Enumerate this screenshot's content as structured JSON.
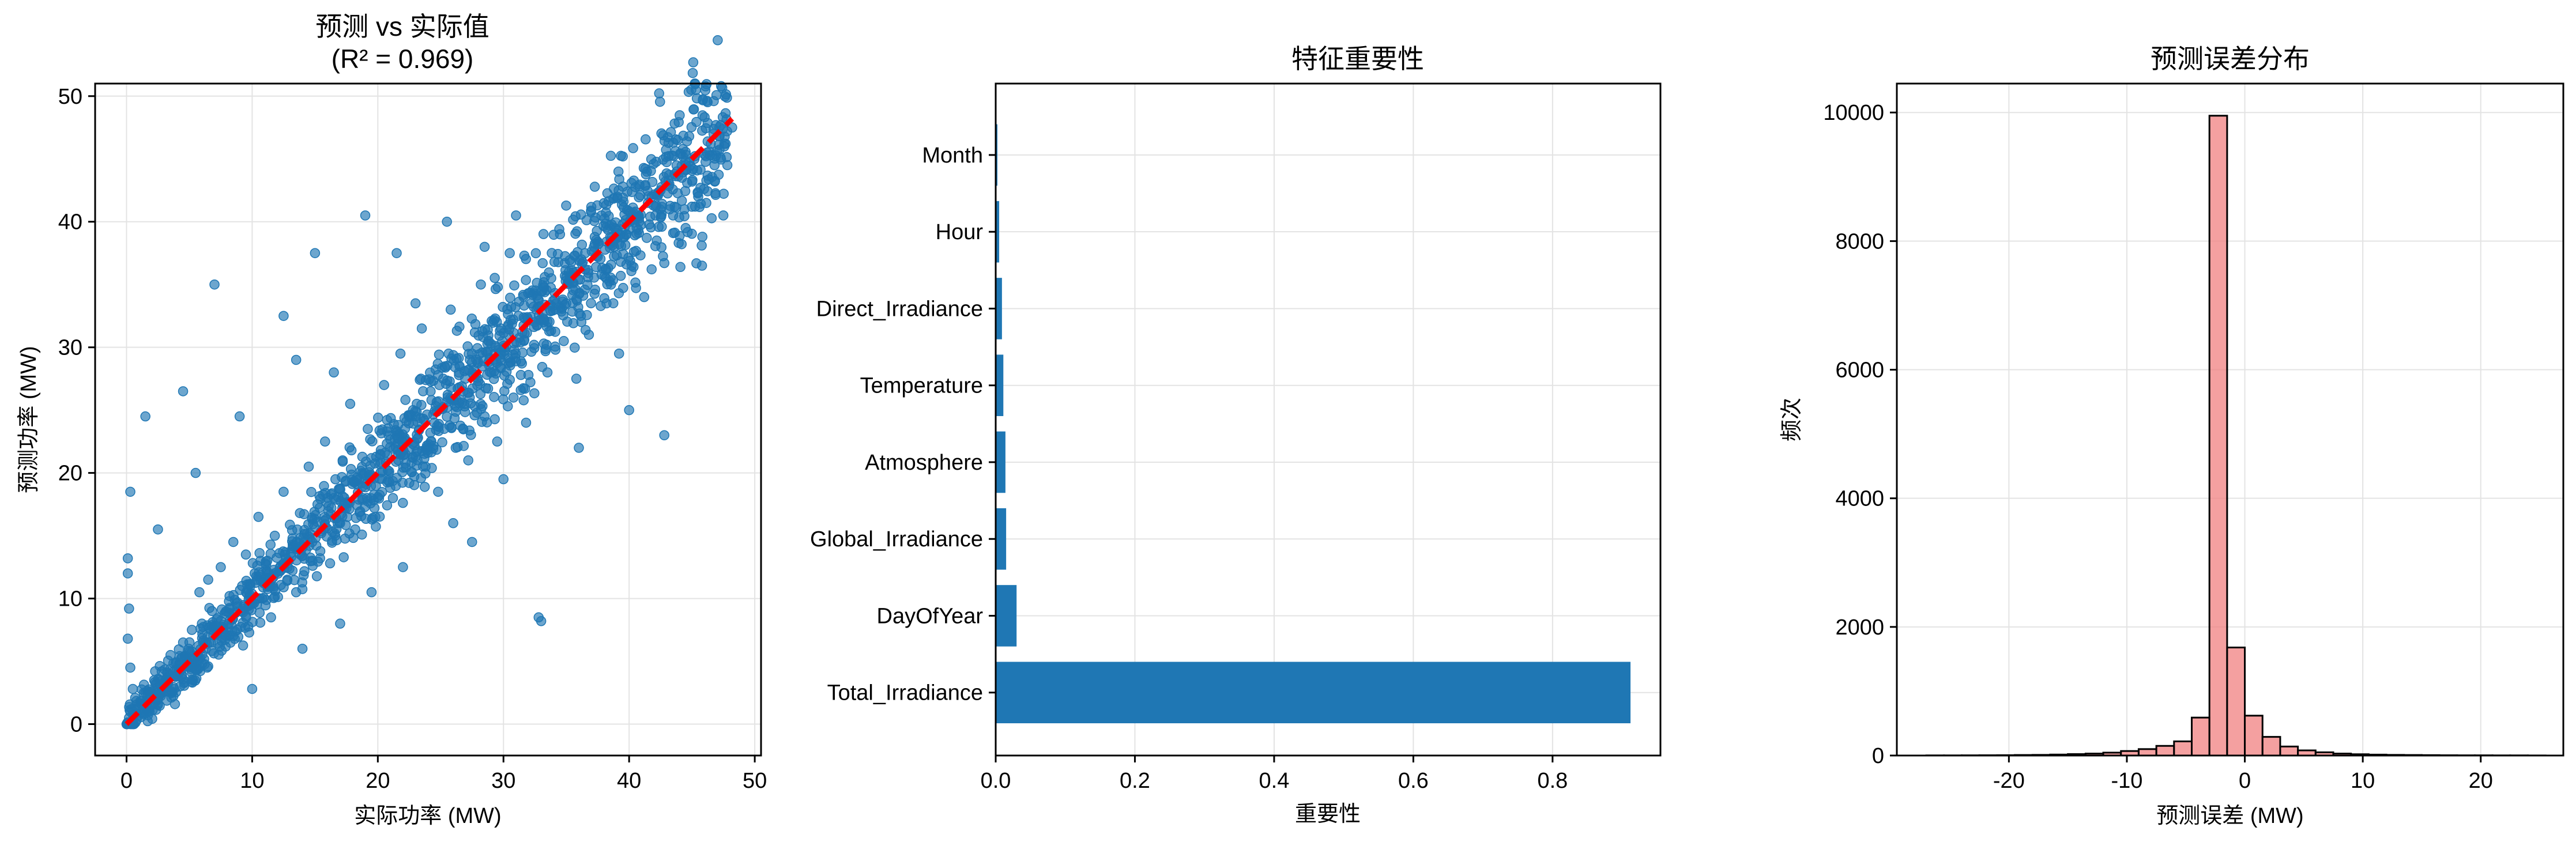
{
  "chart_data": [
    {
      "type": "scatter",
      "title": "预测 vs 实际值",
      "subtitle": "(R² = 0.969)",
      "xlabel": "实际功率 (MW)",
      "ylabel": "预测功率 (MW)",
      "xlim": [
        -2.5,
        50.5
      ],
      "ylim": [
        -2.5,
        51
      ],
      "xticks": [
        0,
        10,
        20,
        30,
        40,
        50
      ],
      "yticks": [
        0,
        10,
        20,
        30,
        40,
        50
      ],
      "grid": true,
      "point_color": "#1f77b4",
      "reference_line": {
        "x": [
          0,
          48.2
        ],
        "y": [
          0,
          48.2
        ],
        "color": "#ff0000",
        "style": "dashed"
      },
      "points": [
        [
          0.2,
          0.5
        ],
        [
          0.4,
          1.2
        ],
        [
          0.3,
          18.5
        ],
        [
          0.1,
          13.2
        ],
        [
          0.1,
          12.0
        ],
        [
          0.2,
          9.2
        ],
        [
          0.1,
          6.8
        ],
        [
          0.3,
          4.5
        ],
        [
          0.5,
          2.8
        ],
        [
          0.8,
          0.3
        ],
        [
          1.2,
          1.8
        ],
        [
          1.5,
          2.5
        ],
        [
          1.8,
          1.2
        ],
        [
          2.2,
          3.5
        ],
        [
          2.5,
          2.0
        ],
        [
          2.8,
          4.2
        ],
        [
          3.2,
          3.0
        ],
        [
          3.5,
          5.5
        ],
        [
          3.8,
          2.8
        ],
        [
          4.2,
          4.8
        ],
        [
          4.5,
          6.5
        ],
        [
          4.8,
          5.0
        ],
        [
          5.2,
          7.5
        ],
        [
          5.5,
          4.5
        ],
        [
          5.8,
          10.5
        ],
        [
          6.0,
          8.0
        ],
        [
          6.3,
          6.0
        ],
        [
          6.5,
          11.5
        ],
        [
          6.8,
          9.0
        ],
        [
          7.2,
          7.2
        ],
        [
          7.5,
          12.5
        ],
        [
          7.8,
          8.8
        ],
        [
          8.2,
          10.2
        ],
        [
          8.5,
          14.5
        ],
        [
          8.8,
          7.5
        ],
        [
          9.2,
          11.0
        ],
        [
          9.5,
          13.5
        ],
        [
          9.8,
          9.5
        ],
        [
          10.2,
          12.0
        ],
        [
          10.5,
          16.5
        ],
        [
          10.8,
          10.0
        ],
        [
          11.2,
          13.0
        ],
        [
          11.5,
          8.5
        ],
        [
          11.8,
          15.0
        ],
        [
          12.2,
          12.2
        ],
        [
          12.5,
          18.5
        ],
        [
          12.8,
          11.5
        ],
        [
          13.2,
          14.0
        ],
        [
          13.5,
          10.5
        ],
        [
          13.8,
          16.8
        ],
        [
          14.2,
          14.5
        ],
        [
          14.5,
          20.5
        ],
        [
          14.8,
          13.0
        ],
        [
          15.2,
          17.5
        ],
        [
          15.5,
          15.2
        ],
        [
          15.8,
          22.5
        ],
        [
          16.2,
          12.8
        ],
        [
          16.5,
          18.0
        ],
        [
          16.8,
          16.0
        ],
        [
          17.2,
          21.0
        ],
        [
          17.5,
          17.2
        ],
        [
          17.8,
          25.5
        ],
        [
          18.2,
          15.5
        ],
        [
          18.5,
          19.5
        ],
        [
          18.8,
          18.0
        ],
        [
          19.2,
          23.5
        ],
        [
          19.5,
          19.8
        ],
        [
          19.8,
          16.5
        ],
        [
          20.2,
          21.5
        ],
        [
          20.5,
          27.0
        ],
        [
          20.8,
          20.2
        ],
        [
          21.2,
          18.0
        ],
        [
          21.5,
          23.0
        ],
        [
          21.8,
          29.5
        ],
        [
          22.2,
          21.5
        ],
        [
          22.5,
          19.2
        ],
        [
          22.8,
          25.0
        ],
        [
          23.2,
          22.8
        ],
        [
          23.5,
          31.5
        ],
        [
          23.8,
          20.5
        ],
        [
          24.2,
          26.5
        ],
        [
          24.5,
          24.0
        ],
        [
          24.8,
          18.5
        ],
        [
          25.2,
          27.5
        ],
        [
          25.5,
          25.2
        ],
        [
          25.8,
          33.0
        ],
        [
          26.2,
          22.0
        ],
        [
          26.5,
          28.5
        ],
        [
          26.8,
          26.5
        ],
        [
          27.2,
          21.0
        ],
        [
          27.5,
          29.5
        ],
        [
          27.8,
          27.8
        ],
        [
          28.2,
          35.0
        ],
        [
          28.5,
          24.5
        ],
        [
          28.8,
          30.5
        ],
        [
          29.2,
          29.0
        ],
        [
          29.5,
          22.5
        ],
        [
          29.8,
          31.5
        ],
        [
          30.2,
          30.0
        ],
        [
          30.5,
          37.5
        ],
        [
          30.8,
          26.0
        ],
        [
          31.2,
          32.5
        ],
        [
          31.5,
          31.2
        ],
        [
          31.8,
          24.0
        ],
        [
          32.2,
          33.5
        ],
        [
          32.5,
          32.0
        ],
        [
          32.8,
          8.5
        ],
        [
          33.0,
          8.2
        ],
        [
          33.2,
          34.8
        ],
        [
          33.5,
          28.0
        ],
        [
          33.8,
          35.5
        ],
        [
          34.2,
          33.5
        ],
        [
          34.5,
          39.0
        ],
        [
          34.8,
          30.5
        ],
        [
          35.2,
          36.0
        ],
        [
          35.5,
          35.2
        ],
        [
          35.8,
          27.5
        ],
        [
          36.2,
          37.0
        ],
        [
          36.5,
          36.2
        ],
        [
          36.8,
          31.0
        ],
        [
          37.2,
          38.0
        ],
        [
          37.5,
          37.2
        ],
        [
          37.8,
          40.5
        ],
        [
          38.2,
          33.5
        ],
        [
          38.5,
          38.8
        ],
        [
          38.8,
          38.0
        ],
        [
          39.2,
          29.5
        ],
        [
          39.5,
          39.8
        ],
        [
          39.8,
          39.0
        ],
        [
          40.2,
          36.5
        ],
        [
          40.5,
          40.8
        ],
        [
          40.8,
          40.0
        ],
        [
          41.2,
          34.0
        ],
        [
          41.5,
          41.5
        ],
        [
          41.8,
          42.0
        ],
        [
          42.2,
          38.5
        ],
        [
          42.5,
          42.5
        ],
        [
          42.8,
          23.0
        ],
        [
          43.2,
          43.0
        ],
        [
          43.5,
          40.5
        ],
        [
          43.8,
          44.0
        ],
        [
          44.2,
          43.5
        ],
        [
          44.5,
          39.5
        ],
        [
          44.8,
          44.8
        ],
        [
          45.2,
          45.0
        ],
        [
          45.5,
          42.0
        ],
        [
          45.8,
          36.5
        ],
        [
          46.2,
          45.5
        ],
        [
          46.5,
          46.2
        ],
        [
          46.8,
          44.5
        ],
        [
          47.2,
          46.8
        ],
        [
          47.5,
          40.5
        ],
        [
          47.8,
          47.2
        ],
        [
          48.2,
          47.5
        ],
        [
          7.0,
          35.0
        ],
        [
          15.0,
          37.5
        ],
        [
          19.0,
          40.5
        ],
        [
          21.5,
          37.5
        ],
        [
          12.5,
          32.5
        ],
        [
          4.5,
          26.5
        ],
        [
          9.0,
          24.5
        ],
        [
          1.5,
          24.5
        ],
        [
          25.5,
          40.0
        ],
        [
          28.5,
          38.0
        ],
        [
          13.5,
          29.0
        ],
        [
          5.5,
          20.0
        ],
        [
          16.5,
          28.0
        ],
        [
          23.0,
          33.5
        ],
        [
          31.0,
          40.5
        ],
        [
          2.5,
          15.5
        ],
        [
          10.0,
          2.8
        ],
        [
          17.0,
          8.0
        ],
        [
          22.0,
          12.5
        ],
        [
          26.0,
          16.0
        ],
        [
          30.0,
          19.5
        ],
        [
          36.0,
          22.0
        ],
        [
          40.0,
          25.0
        ],
        [
          14.0,
          6.0
        ],
        [
          19.5,
          10.5
        ],
        [
          27.5,
          14.5
        ]
      ]
    },
    {
      "type": "bar",
      "orientation": "horizontal",
      "title": "特征重要性",
      "xlabel": "重要性",
      "ylabel": "",
      "xlim": [
        0,
        0.955
      ],
      "xticks": [
        0.0,
        0.2,
        0.4,
        0.6,
        0.8
      ],
      "xtick_labels": [
        "0.0",
        "0.2",
        "0.4",
        "0.6",
        "0.8"
      ],
      "grid": true,
      "bar_color": "#1f77b4",
      "categories": [
        "Total_Irradiance",
        "DayOfYear",
        "Global_Irradiance",
        "Atmosphere",
        "Temperature",
        "Direct_Irradiance",
        "Hour",
        "Month"
      ],
      "values": [
        0.912,
        0.03,
        0.015,
        0.014,
        0.011,
        0.009,
        0.005,
        0.001
      ]
    },
    {
      "type": "bar",
      "subtype": "histogram",
      "title": "预测误差分布",
      "xlabel": "预测误差 (MW)",
      "ylabel": "频次",
      "xlim": [
        -29.5,
        27
      ],
      "ylim": [
        0,
        10450
      ],
      "xticks": [
        -20,
        -10,
        0,
        10,
        20
      ],
      "yticks": [
        0,
        2000,
        4000,
        6000,
        8000,
        10000
      ],
      "grid": true,
      "bar_color": "#f08080",
      "edge_color": "#000000",
      "bin_edges": [
        -27,
        -25.5,
        -24,
        -22.5,
        -21,
        -19.5,
        -18,
        -16.5,
        -15,
        -13.5,
        -12,
        -10.5,
        -9,
        -7.5,
        -6,
        -4.5,
        -3,
        -1.5,
        0,
        1.5,
        3,
        4.5,
        6,
        7.5,
        9,
        10.5,
        12,
        13.5,
        15,
        16.5,
        18,
        19.5,
        21,
        22.5,
        24,
        25.5
      ],
      "values": [
        2,
        2,
        3,
        4,
        5,
        8,
        10,
        15,
        22,
        30,
        45,
        70,
        100,
        150,
        220,
        590,
        9950,
        1680,
        620,
        290,
        140,
        80,
        50,
        30,
        20,
        14,
        10,
        8,
        6,
        4,
        3,
        3,
        2,
        2,
        1
      ]
    }
  ]
}
